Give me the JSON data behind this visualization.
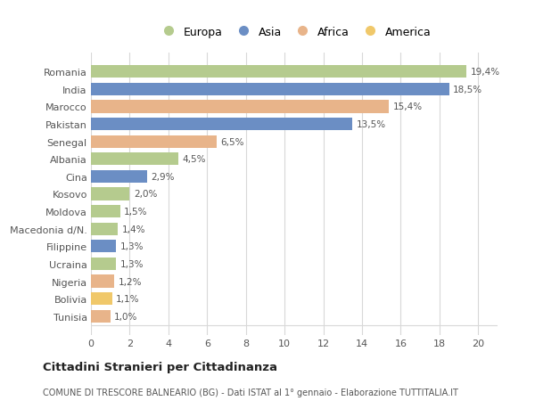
{
  "categories": [
    "Romania",
    "India",
    "Marocco",
    "Pakistan",
    "Senegal",
    "Albania",
    "Cina",
    "Kosovo",
    "Moldova",
    "Macedonia d/N.",
    "Filippine",
    "Ucraina",
    "Nigeria",
    "Bolivia",
    "Tunisia"
  ],
  "values": [
    19.4,
    18.5,
    15.4,
    13.5,
    6.5,
    4.5,
    2.9,
    2.0,
    1.5,
    1.4,
    1.3,
    1.3,
    1.2,
    1.1,
    1.0
  ],
  "labels": [
    "19,4%",
    "18,5%",
    "15,4%",
    "13,5%",
    "6,5%",
    "4,5%",
    "2,9%",
    "2,0%",
    "1,5%",
    "1,4%",
    "1,3%",
    "1,3%",
    "1,2%",
    "1,1%",
    "1,0%"
  ],
  "colors": [
    "#b5cb8e",
    "#6b8ec4",
    "#e8b48a",
    "#6b8ec4",
    "#e8b48a",
    "#b5cb8e",
    "#6b8ec4",
    "#b5cb8e",
    "#b5cb8e",
    "#b5cb8e",
    "#6b8ec4",
    "#b5cb8e",
    "#e8b48a",
    "#f0c86a",
    "#e8b48a"
  ],
  "legend_labels": [
    "Europa",
    "Asia",
    "Africa",
    "America"
  ],
  "legend_colors": [
    "#b5cb8e",
    "#6b8ec4",
    "#e8b48a",
    "#f0c86a"
  ],
  "title": "Cittadini Stranieri per Cittadinanza",
  "subtitle": "COMUNE DI TRESCORE BALNEARIO (BG) - Dati ISTAT al 1° gennaio - Elaborazione TUTTITALIA.IT",
  "xlim": [
    0,
    21
  ],
  "xticks": [
    0,
    2,
    4,
    6,
    8,
    10,
    12,
    14,
    16,
    18,
    20
  ],
  "bg_color": "#ffffff",
  "plot_bg_color": "#ffffff",
  "grid_color": "#d8d8d8",
  "bar_height": 0.72
}
